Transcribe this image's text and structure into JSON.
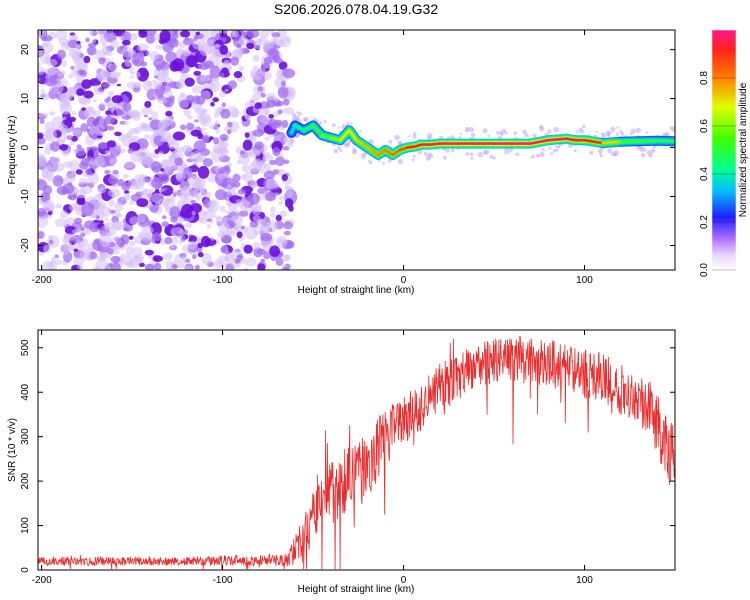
{
  "title": "S206.2026.078.04.19.G32",
  "colors": {
    "noise_purple": "#7a1fe0",
    "noise_purple_light": "#c9a6f5",
    "snr_line": "#ee2a2a",
    "axis": "#000000"
  },
  "colorbar": {
    "label": "Normalized spectral amplitude",
    "range": [
      0.0,
      1.0
    ],
    "ticks": [
      0.0,
      0.2,
      0.4,
      0.6,
      0.8
    ],
    "tick_labels": [
      "0.0",
      "0.2",
      "0.4",
      "0.6",
      "0.8"
    ]
  },
  "chart_data": [
    {
      "type": "heatmap",
      "name": "spectrogram",
      "title": "S206.2026.078.04.19.G32",
      "xlabel": "Height of straight line (km)",
      "ylabel": "Frequency (Hz)",
      "xlim": [
        -202,
        150
      ],
      "ylim": [
        -25,
        24
      ],
      "xticks": [
        -200,
        -100,
        0,
        100
      ],
      "xtick_labels": [
        "-200",
        "-100",
        "0",
        "100"
      ],
      "yticks": [
        -20,
        -10,
        0,
        10,
        20
      ],
      "ytick_labels": [
        "-20",
        "-10",
        "0",
        "10",
        "20"
      ],
      "noise_region_x": [
        -202,
        -62
      ],
      "ridge": {
        "x": [
          -62,
          -60,
          -55,
          -50,
          -45,
          -40,
          -35,
          -30,
          -26,
          -22,
          -18,
          -14,
          -10,
          -6,
          -2,
          2,
          6,
          10,
          15,
          20,
          30,
          40,
          50,
          60,
          70,
          80,
          90,
          95,
          100,
          110,
          120,
          130,
          140,
          150
        ],
        "f": [
          3,
          4.5,
          3.5,
          4.5,
          2.5,
          2,
          1.5,
          3.5,
          1.5,
          0.5,
          -0.5,
          -1.5,
          -0.5,
          -1.5,
          -0.5,
          0,
          0.2,
          0.6,
          0.6,
          0.8,
          0.8,
          0.8,
          0.8,
          0.8,
          0.8,
          1.5,
          1.8,
          1.5,
          1.5,
          0.9,
          1.2,
          1.3,
          1.4,
          1.3
        ],
        "amp": [
          0.35,
          0.4,
          0.45,
          0.5,
          0.55,
          0.6,
          0.65,
          0.7,
          0.72,
          0.74,
          0.76,
          0.78,
          0.8,
          0.82,
          0.84,
          0.9,
          0.93,
          0.95,
          0.96,
          0.97,
          0.98,
          0.98,
          0.98,
          0.99,
          0.99,
          0.98,
          0.97,
          0.95,
          0.93,
          0.9,
          0.55,
          0.55,
          0.5,
          0.5
        ]
      }
    },
    {
      "type": "line",
      "name": "snr",
      "xlabel": "Height of straight line (km)",
      "ylabel": "SNR (10 * v/v)",
      "xlim": [
        -202,
        150
      ],
      "ylim": [
        0,
        540
      ],
      "xticks": [
        -200,
        -100,
        0,
        100
      ],
      "xtick_labels": [
        "-200",
        "-100",
        "0",
        "100"
      ],
      "yticks": [
        0,
        100,
        200,
        300,
        400,
        500
      ],
      "ytick_labels": [
        "0",
        "100",
        "200",
        "300",
        "400",
        "500"
      ],
      "envelope": {
        "x": [
          -202,
          -180,
          -150,
          -120,
          -90,
          -65,
          -55,
          -45,
          -40,
          -30,
          -20,
          -10,
          0,
          10,
          20,
          30,
          40,
          50,
          60,
          70,
          80,
          90,
          100,
          110,
          120,
          130,
          140,
          150
        ],
        "snr": [
          20,
          20,
          20,
          20,
          22,
          22,
          60,
          180,
          170,
          210,
          240,
          300,
          330,
          370,
          410,
          430,
          460,
          470,
          475,
          470,
          465,
          455,
          440,
          430,
          410,
          390,
          330,
          240
        ],
        "spread": [
          10,
          10,
          10,
          10,
          12,
          14,
          60,
          70,
          70,
          80,
          80,
          70,
          60,
          60,
          55,
          55,
          50,
          50,
          55,
          55,
          55,
          55,
          55,
          55,
          60,
          60,
          70,
          80
        ]
      }
    }
  ]
}
